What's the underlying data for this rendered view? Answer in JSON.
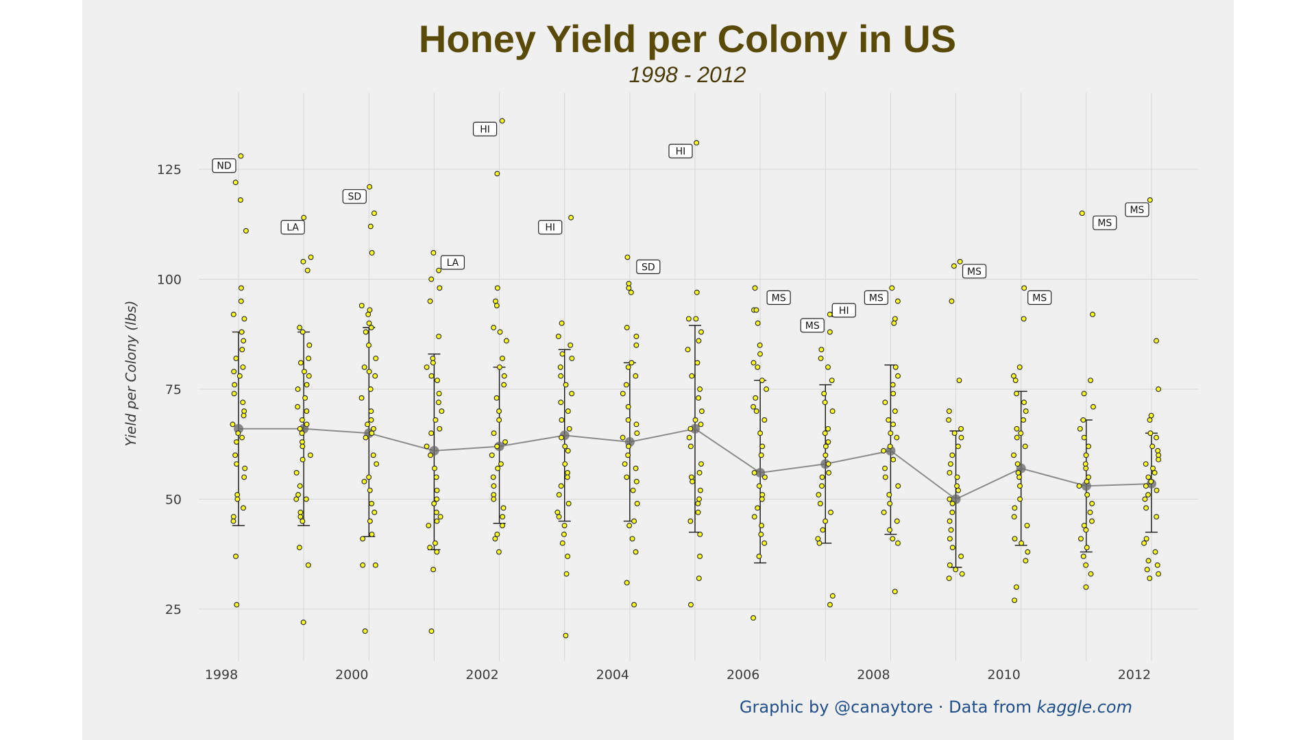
{
  "chart_data": {
    "type": "scatter",
    "title": "Honey Yield per Colony in US",
    "subtitle": "1998 - 2012",
    "xlabel": "",
    "ylabel": "Yield per Colony (lbs)",
    "xlim": [
      1997.5,
      2013
    ],
    "ylim": [
      13,
      140
    ],
    "x_ticks": [
      1998,
      2000,
      2002,
      2004,
      2006,
      2008,
      2010,
      2012
    ],
    "y_ticks": [
      25,
      50,
      75,
      100,
      125
    ],
    "grid": true,
    "point_color": "#ffff22",
    "summary_color": "#8a8a8a",
    "caption": {
      "prefix": "Graphic by @canaytore ·   Data from ",
      "source": "kaggle.com"
    },
    "series": [
      {
        "name": "mean",
        "x": [
          1998,
          1999,
          2000,
          2001,
          2002,
          2003,
          2004,
          2005,
          2006,
          2007,
          2008,
          2009,
          2010,
          2011,
          2012
        ],
        "values": [
          66,
          66,
          65,
          61,
          62,
          64.5,
          63,
          66,
          56,
          58,
          61,
          50,
          57,
          53,
          53.5
        ]
      },
      {
        "name": "mean + sd",
        "x": [
          1998,
          1999,
          2000,
          2001,
          2002,
          2003,
          2004,
          2005,
          2006,
          2007,
          2008,
          2009,
          2010,
          2011,
          2012
        ],
        "values": [
          88,
          88,
          89,
          83,
          80,
          84,
          81,
          89.5,
          77,
          76,
          80.5,
          65.5,
          74.5,
          68,
          65
        ]
      },
      {
        "name": "mean - sd",
        "x": [
          1998,
          1999,
          2000,
          2001,
          2002,
          2003,
          2004,
          2005,
          2006,
          2007,
          2008,
          2009,
          2010,
          2011,
          2012
        ],
        "values": [
          44,
          44,
          41.5,
          38.5,
          44.5,
          45,
          45,
          42.5,
          35.5,
          40,
          42,
          34.5,
          39.5,
          38,
          42.5
        ]
      }
    ],
    "points": {
      "1998": [
        128,
        122,
        118,
        111,
        98,
        95,
        92,
        91,
        88,
        86,
        84,
        82,
        80,
        79,
        78,
        76,
        74,
        72,
        70,
        69,
        67,
        65,
        64,
        63,
        60,
        58,
        57,
        55,
        51,
        50,
        48,
        46,
        45,
        37,
        26
      ],
      "1999": [
        114,
        105,
        104,
        102,
        89,
        88,
        85,
        82,
        81,
        79,
        78,
        76,
        75,
        73,
        71,
        70,
        68,
        67,
        66,
        65,
        63,
        62,
        60,
        59,
        56,
        53,
        51,
        50,
        50,
        47,
        46,
        45,
        39,
        35,
        22
      ],
      "2000": [
        121,
        115,
        112,
        106,
        94,
        93,
        92,
        90,
        89,
        88,
        85,
        82,
        80,
        79,
        78,
        75,
        73,
        70,
        68,
        67,
        66,
        65,
        64,
        60,
        58,
        55,
        54,
        52,
        49,
        47,
        45,
        42,
        41,
        35,
        35,
        20
      ],
      "2001": [
        106,
        102,
        100,
        98,
        95,
        87,
        82,
        81,
        80,
        78,
        77,
        74,
        72,
        70,
        68,
        66,
        65,
        62,
        60,
        57,
        55,
        52,
        50,
        49,
        47,
        46,
        45,
        44,
        40,
        39,
        38,
        34,
        20
      ],
      "2002": [
        136,
        124,
        98,
        95,
        94,
        89,
        88,
        86,
        82,
        80,
        78,
        76,
        73,
        70,
        68,
        65,
        63,
        62,
        60,
        58,
        57,
        55,
        53,
        51,
        50,
        48,
        46,
        44,
        42,
        41,
        38
      ],
      "2003": [
        114,
        90,
        87,
        85,
        83,
        82,
        80,
        78,
        76,
        74,
        72,
        70,
        68,
        66,
        64,
        62,
        61,
        58,
        56,
        55,
        53,
        51,
        49,
        47,
        46,
        44,
        42,
        40,
        37,
        33,
        19
      ],
      "2004": [
        105,
        99,
        98,
        97,
        89,
        87,
        85,
        81,
        80,
        78,
        76,
        74,
        71,
        68,
        67,
        65,
        64,
        62,
        60,
        58,
        57,
        55,
        54,
        52,
        49,
        45,
        44,
        41,
        38,
        31,
        26
      ],
      "2005": [
        131,
        97,
        91,
        91,
        88,
        86,
        84,
        81,
        78,
        75,
        73,
        70,
        68,
        67,
        66,
        64,
        62,
        58,
        56,
        55,
        54,
        52,
        50,
        49,
        47,
        45,
        42,
        37,
        32,
        26
      ],
      "2006": [
        98,
        93,
        93,
        90,
        85,
        83,
        81,
        80,
        77,
        75,
        73,
        71,
        70,
        68,
        65,
        62,
        60,
        56,
        55,
        53,
        51,
        50,
        48,
        46,
        44,
        42,
        40,
        37,
        23
      ],
      "2007": [
        92,
        92,
        88,
        84,
        82,
        80,
        77,
        74,
        72,
        70,
        66,
        65,
        63,
        62,
        60,
        58,
        56,
        55,
        53,
        51,
        49,
        47,
        45,
        43,
        41,
        40,
        28,
        26
      ],
      "2008": [
        98,
        95,
        91,
        90,
        80,
        78,
        76,
        74,
        72,
        70,
        68,
        67,
        65,
        64,
        62,
        61,
        59,
        57,
        55,
        53,
        51,
        49,
        47,
        45,
        43,
        41,
        40,
        29
      ],
      "2009": [
        104,
        103,
        95,
        77,
        70,
        68,
        66,
        65,
        64,
        62,
        60,
        58,
        56,
        55,
        53,
        52,
        50,
        49,
        47,
        45,
        43,
        41,
        39,
        37,
        35,
        34,
        33,
        32
      ],
      "2010": [
        98,
        91,
        80,
        78,
        77,
        74,
        72,
        70,
        68,
        66,
        65,
        64,
        62,
        60,
        58,
        56,
        55,
        53,
        50,
        48,
        46,
        44,
        41,
        40,
        38,
        36,
        30,
        27
      ],
      "2011": [
        115,
        92,
        77,
        74,
        71,
        68,
        66,
        64,
        62,
        60,
        58,
        57,
        55,
        54,
        53,
        51,
        49,
        47,
        45,
        44,
        43,
        41,
        39,
        37,
        35,
        33,
        30
      ],
      "2012": [
        118,
        86,
        75,
        69,
        68,
        65,
        64,
        62,
        61,
        60,
        59,
        58,
        57,
        56,
        55,
        54,
        53,
        52,
        51,
        50,
        48,
        46,
        41,
        40,
        38,
        36,
        35,
        34,
        33,
        32
      ]
    },
    "annotations": [
      {
        "text": "ND",
        "x": 1998,
        "y": 128
      },
      {
        "text": "LA",
        "x": 1999,
        "y": 114
      },
      {
        "text": "SD",
        "x": 2000,
        "y": 121
      },
      {
        "text": "LA",
        "x": 2001,
        "y": 106
      },
      {
        "text": "HI",
        "x": 2002,
        "y": 136
      },
      {
        "text": "HI",
        "x": 2003,
        "y": 114
      },
      {
        "text": "SD",
        "x": 2004,
        "y": 105
      },
      {
        "text": "HI",
        "x": 2005,
        "y": 131
      },
      {
        "text": "MS",
        "x": 2006,
        "y": 98
      },
      {
        "text": "MS",
        "x": 2007,
        "y": 92
      },
      {
        "text": "HI",
        "x": 2007,
        "y": 92
      },
      {
        "text": "MS",
        "x": 2008,
        "y": 98
      },
      {
        "text": "MS",
        "x": 2009,
        "y": 104
      },
      {
        "text": "MS",
        "x": 2010,
        "y": 98
      },
      {
        "text": "MS",
        "x": 2011,
        "y": 115
      },
      {
        "text": "MS",
        "x": 2012,
        "y": 118
      }
    ]
  }
}
